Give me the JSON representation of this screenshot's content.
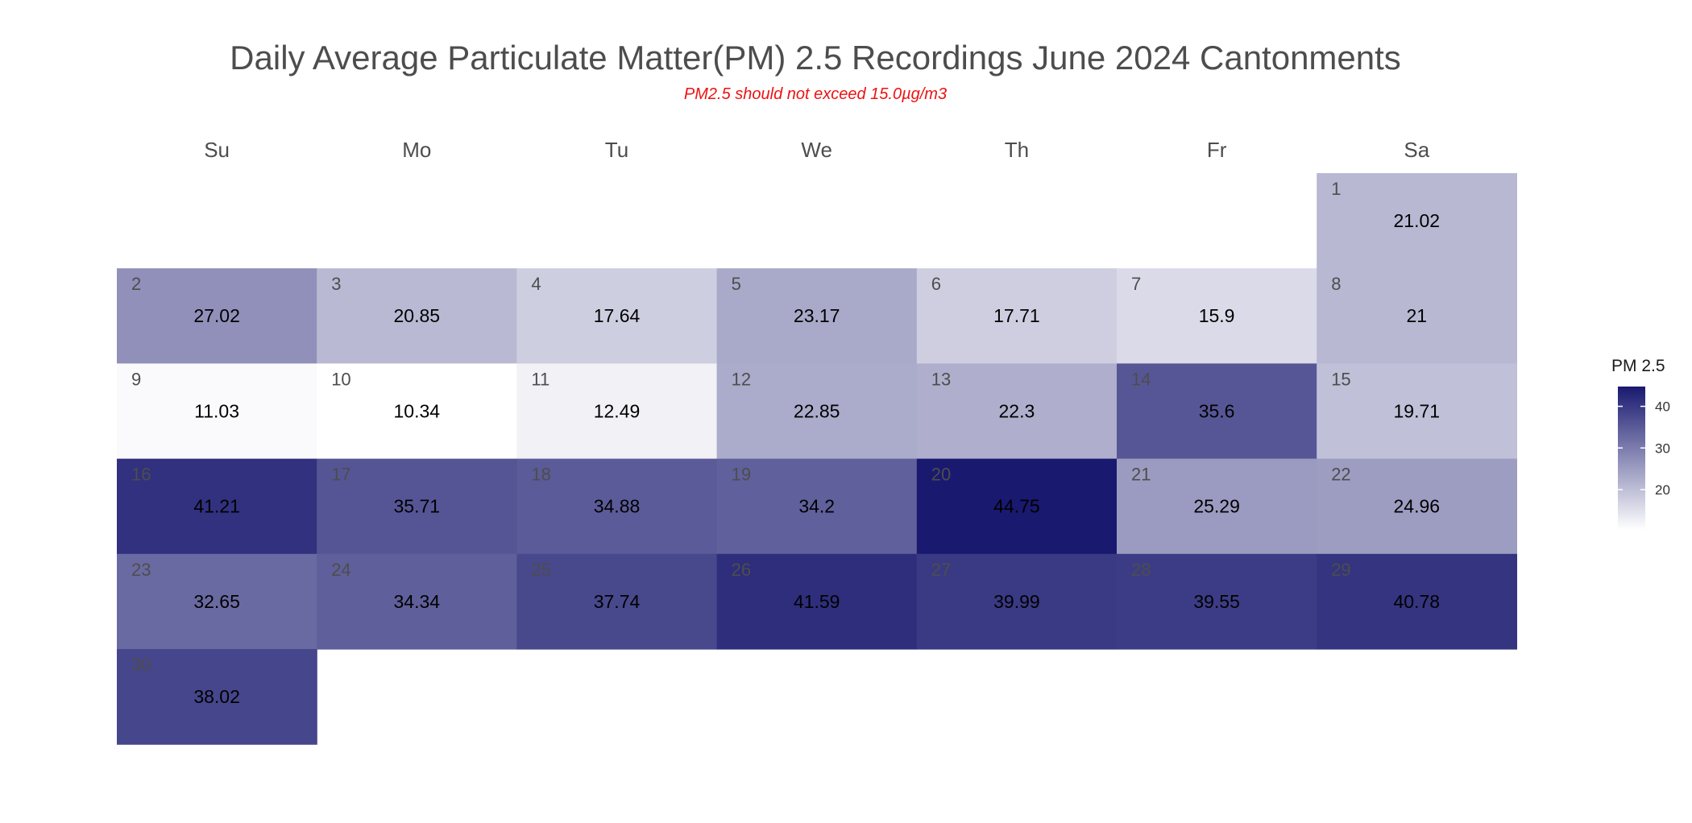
{
  "title": "Daily Average Particulate Matter(PM) 2.5 Recordings June 2024 Cantonments",
  "subtitle": "PM2.5 should not exceed 15.0µg/m3",
  "colors": {
    "title": "#4d4d4d",
    "subtitle": "#ee1111",
    "scale_low": "#ffffff",
    "scale_high": "#191970",
    "value_text": "#000000",
    "day_number_text": "#4d4d4d"
  },
  "chart_data": {
    "type": "heatmap",
    "layout": "calendar",
    "month": "June",
    "year": 2024,
    "weekdays": [
      "Su",
      "Mo",
      "Tu",
      "We",
      "Th",
      "Fr",
      "Sa"
    ],
    "first_weekday_index": 6,
    "days": [
      {
        "day": 1,
        "weekday": "Sa",
        "value": 21.02,
        "label": "21.02"
      },
      {
        "day": 2,
        "weekday": "Su",
        "value": 27.02,
        "label": "27.02"
      },
      {
        "day": 3,
        "weekday": "Mo",
        "value": 20.85,
        "label": "20.85"
      },
      {
        "day": 4,
        "weekday": "Tu",
        "value": 17.64,
        "label": "17.64"
      },
      {
        "day": 5,
        "weekday": "We",
        "value": 23.17,
        "label": "23.17"
      },
      {
        "day": 6,
        "weekday": "Th",
        "value": 17.71,
        "label": "17.71"
      },
      {
        "day": 7,
        "weekday": "Fr",
        "value": 15.9,
        "label": "15.9"
      },
      {
        "day": 8,
        "weekday": "Sa",
        "value": 21,
        "label": "21"
      },
      {
        "day": 9,
        "weekday": "Su",
        "value": 11.03,
        "label": "11.03"
      },
      {
        "day": 10,
        "weekday": "Mo",
        "value": 10.34,
        "label": "10.34"
      },
      {
        "day": 11,
        "weekday": "Tu",
        "value": 12.49,
        "label": "12.49"
      },
      {
        "day": 12,
        "weekday": "We",
        "value": 22.85,
        "label": "22.85"
      },
      {
        "day": 13,
        "weekday": "Th",
        "value": 22.3,
        "label": "22.3"
      },
      {
        "day": 14,
        "weekday": "Fr",
        "value": 35.6,
        "label": "35.6"
      },
      {
        "day": 15,
        "weekday": "Sa",
        "value": 19.71,
        "label": "19.71"
      },
      {
        "day": 16,
        "weekday": "Su",
        "value": 41.21,
        "label": "41.21"
      },
      {
        "day": 17,
        "weekday": "Mo",
        "value": 35.71,
        "label": "35.71"
      },
      {
        "day": 18,
        "weekday": "Tu",
        "value": 34.88,
        "label": "34.88"
      },
      {
        "day": 19,
        "weekday": "We",
        "value": 34.2,
        "label": "34.2"
      },
      {
        "day": 20,
        "weekday": "Th",
        "value": 44.75,
        "label": "44.75"
      },
      {
        "day": 21,
        "weekday": "Fr",
        "value": 25.29,
        "label": "25.29"
      },
      {
        "day": 22,
        "weekday": "Sa",
        "value": 24.96,
        "label": "24.96"
      },
      {
        "day": 23,
        "weekday": "Su",
        "value": 32.65,
        "label": "32.65"
      },
      {
        "day": 24,
        "weekday": "Mo",
        "value": 34.34,
        "label": "34.34"
      },
      {
        "day": 25,
        "weekday": "Tu",
        "value": 37.74,
        "label": "37.74"
      },
      {
        "day": 26,
        "weekday": "We",
        "value": 41.59,
        "label": "41.59"
      },
      {
        "day": 27,
        "weekday": "Th",
        "value": 39.99,
        "label": "39.99"
      },
      {
        "day": 28,
        "weekday": "Fr",
        "value": 39.55,
        "label": "39.55"
      },
      {
        "day": 29,
        "weekday": "Sa",
        "value": 40.78,
        "label": "40.78"
      },
      {
        "day": 30,
        "weekday": "Su",
        "value": 38.02,
        "label": "38.02"
      }
    ],
    "legend": {
      "title": "PM 2.5",
      "placement": "right",
      "range": [
        10.34,
        44.75
      ],
      "ticks": [
        20,
        30,
        40
      ],
      "tick_labels": [
        "20",
        "30",
        "40"
      ]
    }
  }
}
